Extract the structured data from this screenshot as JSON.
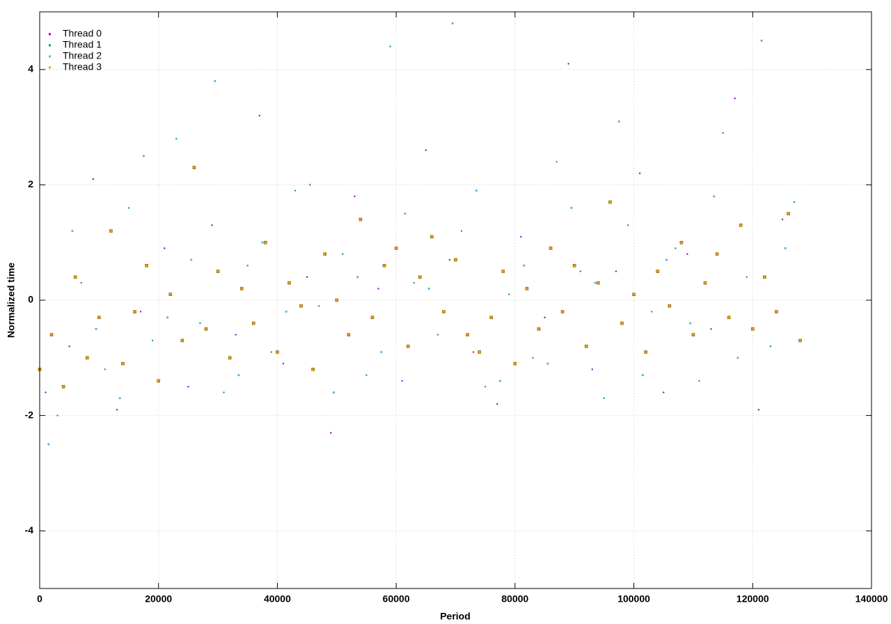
{
  "chart_data": {
    "type": "scatter",
    "x_label": "Period",
    "y_label": "Normalized time",
    "xlim": [
      0,
      140000
    ],
    "xticks": [
      0,
      20000,
      40000,
      60000,
      80000,
      100000,
      120000,
      140000
    ],
    "ylim": [
      -5,
      5
    ],
    "yticks": [
      -4,
      -2,
      0,
      2,
      4
    ],
    "grid": true,
    "legend": "top left",
    "series": [
      {
        "name": "Thread 0",
        "color": "#9400d3",
        "x": [
          1000,
          5000,
          9000,
          13000,
          17000,
          21000,
          25000,
          29000,
          33000,
          37000,
          41000,
          45000,
          49000,
          53000,
          57000,
          61000,
          65000,
          69000,
          73000,
          77000,
          81000,
          85000,
          89000,
          93000,
          97000,
          101000,
          105000,
          109000,
          113000,
          117000,
          121000,
          125000
        ],
        "values": [
          -1.6,
          -0.8,
          2.1,
          -1.9,
          -0.2,
          0.9,
          -1.5,
          1.3,
          -0.6,
          3.2,
          -1.1,
          0.4,
          -2.3,
          1.8,
          0.2,
          -1.4,
          2.6,
          0.7,
          -0.9,
          -1.8,
          1.1,
          -0.3,
          4.1,
          -1.2,
          0.5,
          2.2,
          -1.6,
          0.8,
          -0.5,
          3.5,
          -1.9,
          1.4
        ]
      },
      {
        "name": "Thread 1",
        "color": "#009e73",
        "x": [
          3000,
          7000,
          11000,
          15000,
          19000,
          23000,
          27000,
          31000,
          35000,
          39000,
          43000,
          47000,
          51000,
          55000,
          59000,
          63000,
          67000,
          71000,
          75000,
          79000,
          83000,
          87000,
          91000,
          95000,
          99000,
          103000,
          107000,
          111000,
          115000,
          119000,
          123000,
          127000
        ],
        "values": [
          -2.0,
          0.3,
          -1.2,
          1.6,
          -0.7,
          2.8,
          -0.4,
          -1.6,
          0.6,
          -0.9,
          1.9,
          -0.1,
          0.8,
          -1.3,
          4.4,
          0.3,
          -0.6,
          1.2,
          -1.5,
          0.1,
          -1.0,
          2.4,
          0.5,
          -1.7,
          1.3,
          -0.2,
          0.9,
          -1.4,
          2.9,
          0.4,
          -0.8,
          1.7
        ]
      },
      {
        "name": "Thread 2",
        "color": "#56b4e9",
        "x": [
          1500,
          5500,
          9500,
          13500,
          17500,
          21500,
          25500,
          29500,
          33500,
          37500,
          41500,
          45500,
          49500,
          53500,
          57500,
          61500,
          65500,
          69500,
          73500,
          77500,
          81500,
          85500,
          89500,
          93500,
          97500,
          101500,
          105500,
          109500,
          113500,
          117500,
          121500,
          125500
        ],
        "values": [
          -2.5,
          1.2,
          -0.5,
          -1.7,
          2.5,
          -0.3,
          0.7,
          3.8,
          -1.3,
          1.0,
          -0.2,
          2.0,
          -1.6,
          0.4,
          -0.9,
          1.5,
          0.2,
          4.8,
          1.9,
          -1.4,
          0.6,
          -1.1,
          1.6,
          0.3,
          3.1,
          -1.3,
          0.7,
          -0.4,
          1.8,
          -1.0,
          4.5,
          0.9
        ]
      },
      {
        "name": "Thread 3",
        "color": "#e69f00",
        "x": [
          0,
          2000,
          4000,
          6000,
          8000,
          10000,
          12000,
          14000,
          16000,
          18000,
          20000,
          22000,
          24000,
          26000,
          28000,
          30000,
          32000,
          34000,
          36000,
          38000,
          40000,
          42000,
          44000,
          46000,
          48000,
          50000,
          52000,
          54000,
          56000,
          58000,
          60000,
          62000,
          64000,
          66000,
          68000,
          70000,
          72000,
          74000,
          76000,
          78000,
          80000,
          82000,
          84000,
          86000,
          88000,
          90000,
          92000,
          94000,
          96000,
          98000,
          100000,
          102000,
          104000,
          106000,
          108000,
          110000,
          112000,
          114000,
          116000,
          118000,
          120000,
          122000,
          124000,
          126000,
          128000
        ],
        "values": [
          -1.2,
          -0.6,
          -1.5,
          0.4,
          -1.0,
          -0.3,
          1.2,
          -1.1,
          -0.2,
          0.6,
          -1.4,
          0.1,
          -0.7,
          2.3,
          -0.5,
          0.5,
          -1.0,
          0.2,
          -0.4,
          1.0,
          -0.9,
          0.3,
          -0.1,
          -1.2,
          0.8,
          0.0,
          -0.6,
          1.4,
          -0.3,
          0.6,
          0.9,
          -0.8,
          0.4,
          1.1,
          -0.2,
          0.7,
          -0.6,
          -0.9,
          -0.3,
          0.5,
          -1.1,
          0.2,
          -0.5,
          0.9,
          -0.2,
          0.6,
          -0.8,
          0.3,
          1.7,
          -0.4,
          0.1,
          -0.9,
          0.5,
          -0.1,
          1.0,
          -0.6,
          0.3,
          0.8,
          -0.3,
          1.3,
          -0.5,
          0.4,
          -0.2,
          1.5,
          -0.7
        ]
      }
    ]
  }
}
